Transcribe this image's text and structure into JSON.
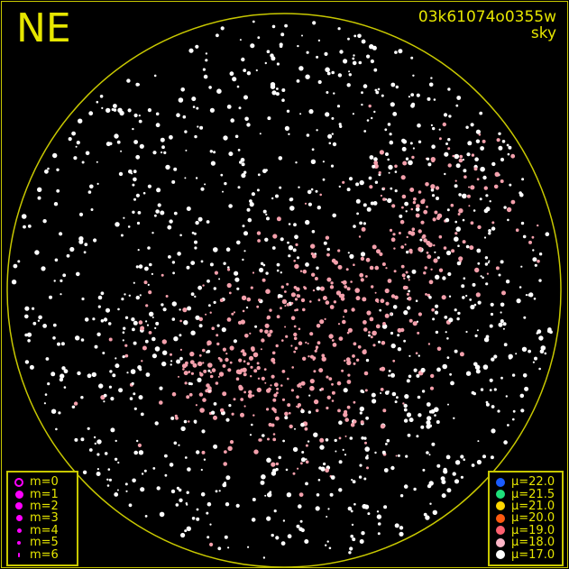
{
  "label_direction": "NE",
  "image_id": "03k61074o0355w",
  "image_type": "sky",
  "magnitude_legend": [
    {
      "label": "m=0",
      "style": "ring"
    },
    {
      "label": "m=1",
      "style": "dot"
    },
    {
      "label": "m=2",
      "style": "dot"
    },
    {
      "label": "m=3",
      "style": "dot"
    },
    {
      "label": "m=4",
      "style": "dot"
    },
    {
      "label": "m=5",
      "style": "dot"
    },
    {
      "label": "m=6",
      "style": "dot"
    }
  ],
  "magnitude_color": "#ff00ff",
  "brightness_legend": [
    {
      "label": "μ=22.0",
      "color": "#1a5cff"
    },
    {
      "label": "μ=21.5",
      "color": "#1ee07a"
    },
    {
      "label": "μ=21.0",
      "color": "#ffd700"
    },
    {
      "label": "μ=20.0",
      "color": "#ff5a10"
    },
    {
      "label": "μ=19.0",
      "color": "#ff6070"
    },
    {
      "label": "μ=18.0",
      "color": "#ffb6c8"
    },
    {
      "label": "μ=17.0",
      "color": "#ffffff"
    }
  ],
  "colors": {
    "frame": "#c8c800",
    "text": "#e6e600",
    "background": "#000000",
    "star_dark": "#ffffff",
    "star_glow": "#f4a0ac"
  }
}
